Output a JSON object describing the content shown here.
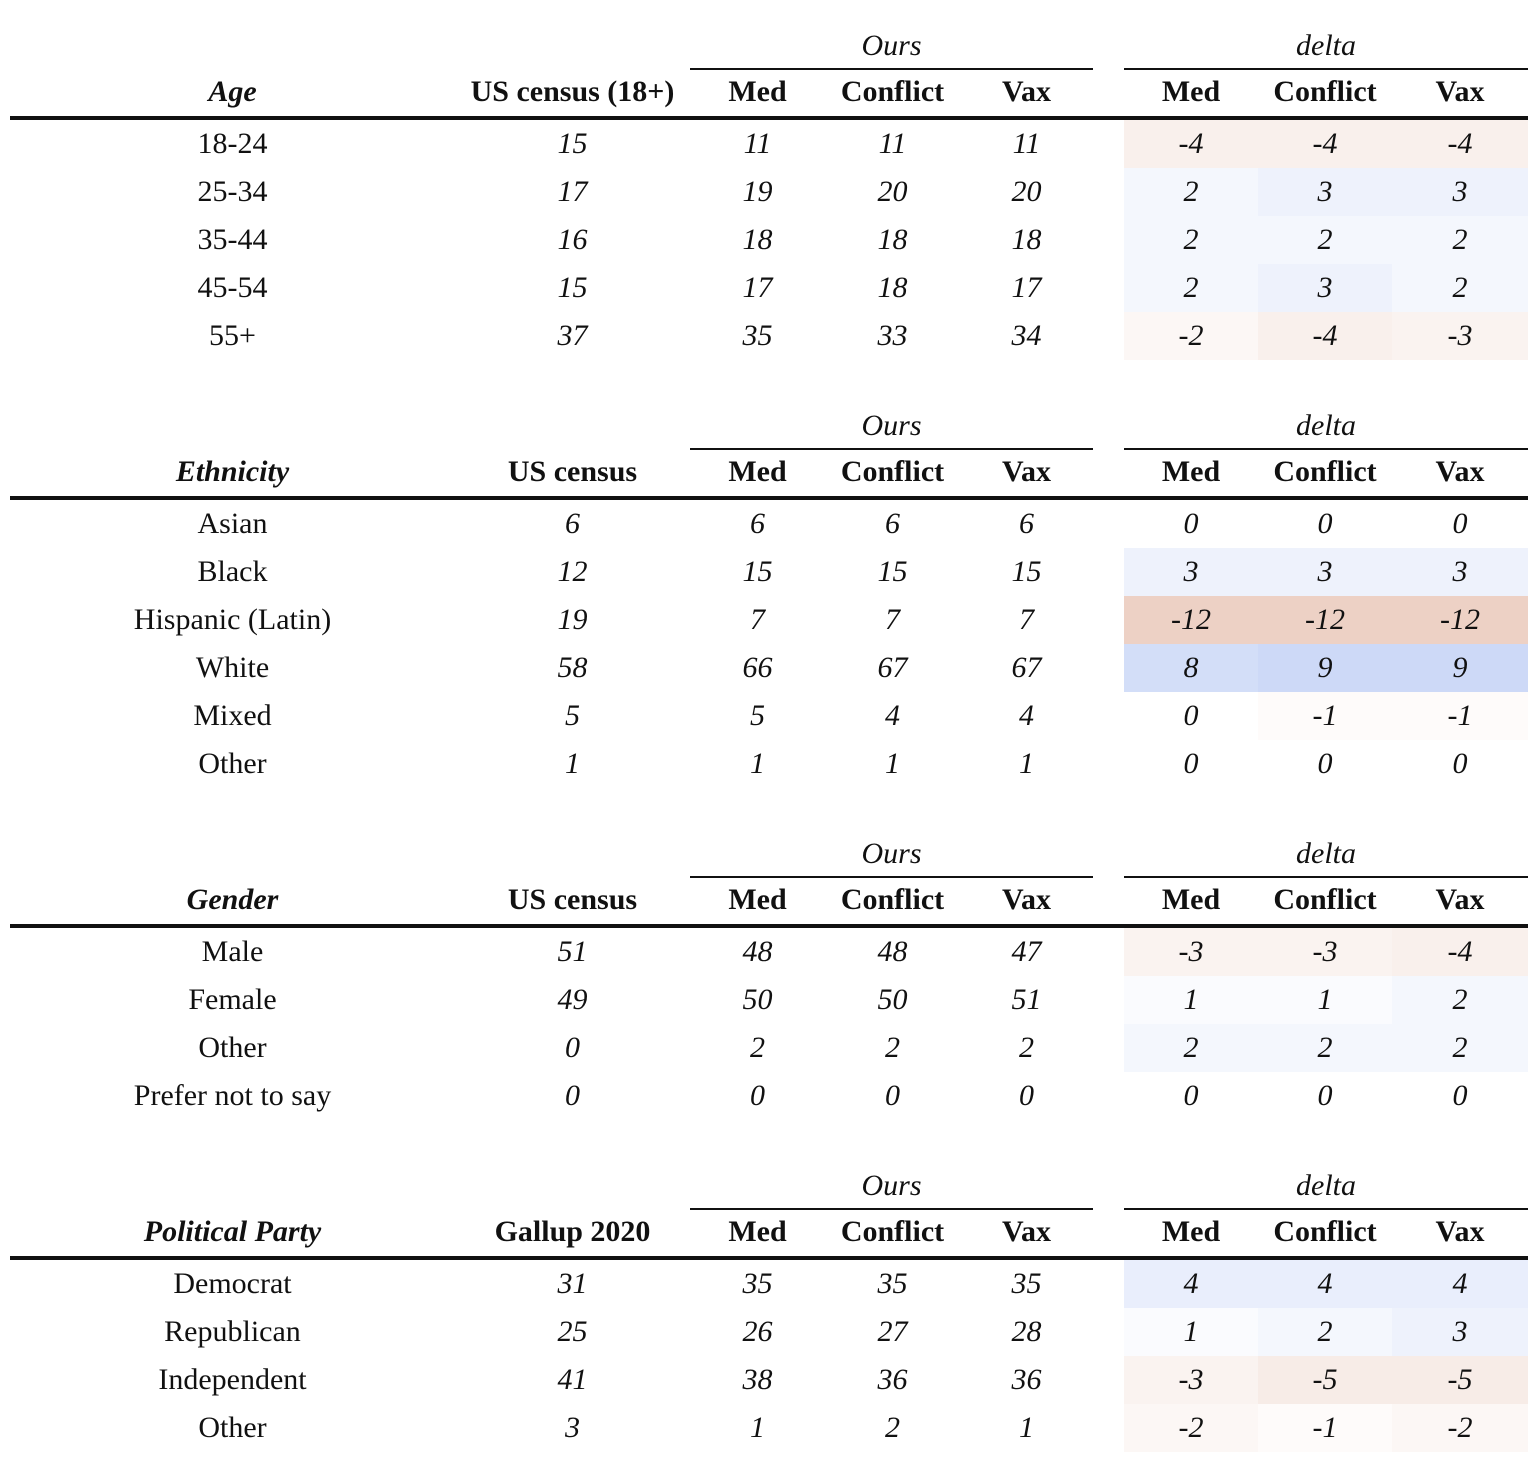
{
  "ours_label": "Ours",
  "delta_label": "delta",
  "sub_headers": [
    "Med",
    "Conflict",
    "Vax"
  ],
  "colors": {
    "positive": "#5a82e6",
    "negative": "#d28c6e"
  },
  "sections": [
    {
      "category": "Age",
      "reference_label": "US census (18+)",
      "rows": [
        {
          "label": "18-24",
          "ref": "15",
          "ours": [
            "11",
            "11",
            "11"
          ],
          "delta": [
            "-4",
            "-4",
            "-4"
          ]
        },
        {
          "label": "25-34",
          "ref": "17",
          "ours": [
            "19",
            "20",
            "20"
          ],
          "delta": [
            "2",
            "3",
            "3"
          ]
        },
        {
          "label": "35-44",
          "ref": "16",
          "ours": [
            "18",
            "18",
            "18"
          ],
          "delta": [
            "2",
            "2",
            "2"
          ]
        },
        {
          "label": "45-54",
          "ref": "15",
          "ours": [
            "17",
            "18",
            "17"
          ],
          "delta": [
            "2",
            "3",
            "2"
          ]
        },
        {
          "label": "55+",
          "ref": "37",
          "ours": [
            "35",
            "33",
            "34"
          ],
          "delta": [
            "-2",
            "-4",
            "-3"
          ]
        }
      ]
    },
    {
      "category": "Ethnicity",
      "reference_label": "US census",
      "rows": [
        {
          "label": "Asian",
          "ref": "6",
          "ours": [
            "6",
            "6",
            "6"
          ],
          "delta": [
            "0",
            "0",
            "0"
          ]
        },
        {
          "label": "Black",
          "ref": "12",
          "ours": [
            "15",
            "15",
            "15"
          ],
          "delta": [
            "3",
            "3",
            "3"
          ]
        },
        {
          "label": "Hispanic (Latin)",
          "ref": "19",
          "ours": [
            "7",
            "7",
            "7"
          ],
          "delta": [
            "-12",
            "-12",
            "-12"
          ]
        },
        {
          "label": "White",
          "ref": "58",
          "ours": [
            "66",
            "67",
            "67"
          ],
          "delta": [
            "8",
            "9",
            "9"
          ]
        },
        {
          "label": "Mixed",
          "ref": "5",
          "ours": [
            "5",
            "4",
            "4"
          ],
          "delta": [
            "0",
            "-1",
            "-1"
          ]
        },
        {
          "label": "Other",
          "ref": "1",
          "ours": [
            "1",
            "1",
            "1"
          ],
          "delta": [
            "0",
            "0",
            "0"
          ]
        }
      ]
    },
    {
      "category": "Gender",
      "reference_label": "US census",
      "rows": [
        {
          "label": "Male",
          "ref": "51",
          "ours": [
            "48",
            "48",
            "47"
          ],
          "delta": [
            "-3",
            "-3",
            "-4"
          ]
        },
        {
          "label": "Female",
          "ref": "49",
          "ours": [
            "50",
            "50",
            "51"
          ],
          "delta": [
            "1",
            "1",
            "2"
          ]
        },
        {
          "label": "Other",
          "ref": "0",
          "ours": [
            "2",
            "2",
            "2"
          ],
          "delta": [
            "2",
            "2",
            "2"
          ]
        },
        {
          "label": "Prefer not to say",
          "ref": "0",
          "ours": [
            "0",
            "0",
            "0"
          ],
          "delta": [
            "0",
            "0",
            "0"
          ]
        }
      ]
    },
    {
      "category": "Political Party",
      "reference_label": "Gallup 2020",
      "rows": [
        {
          "label": "Democrat",
          "ref": "31",
          "ours": [
            "35",
            "35",
            "35"
          ],
          "delta": [
            "4",
            "4",
            "4"
          ]
        },
        {
          "label": "Republican",
          "ref": "25",
          "ours": [
            "26",
            "27",
            "28"
          ],
          "delta": [
            "1",
            "2",
            "3"
          ]
        },
        {
          "label": "Independent",
          "ref": "41",
          "ours": [
            "38",
            "36",
            "36"
          ],
          "delta": [
            "-3",
            "-5",
            "-5"
          ]
        },
        {
          "label": "Other",
          "ref": "3",
          "ours": [
            "1",
            "2",
            "1"
          ],
          "delta": [
            "-2",
            "-1",
            "-2"
          ]
        }
      ]
    }
  ]
}
